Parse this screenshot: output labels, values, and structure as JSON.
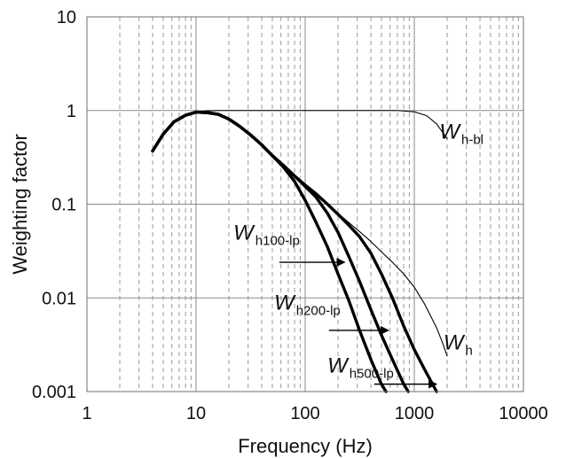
{
  "chart_data": {
    "type": "line",
    "title": "",
    "xlabel": "Frequency (Hz)",
    "ylabel": "Weighting factor",
    "xscale": "log",
    "yscale": "log",
    "xlim": [
      1,
      10000
    ],
    "ylim": [
      0.001,
      10
    ],
    "x_ticks": [
      {
        "value": 1,
        "label": "1"
      },
      {
        "value": 10,
        "label": "10"
      },
      {
        "value": 100,
        "label": "100"
      },
      {
        "value": 1000,
        "label": "1000"
      },
      {
        "value": 10000,
        "label": "10000"
      }
    ],
    "y_ticks": [
      {
        "value": 0.001,
        "label": "0.001"
      },
      {
        "value": 0.01,
        "label": "0.01"
      },
      {
        "value": 0.1,
        "label": "0.1"
      },
      {
        "value": 1,
        "label": "1"
      },
      {
        "value": 10,
        "label": "10"
      }
    ],
    "grid": {
      "major": true,
      "minor_x": true,
      "minor_x_style": "dashed"
    },
    "legend": "none",
    "series": [
      {
        "label_main": "W",
        "label_sub": "h-bl",
        "style": "thin",
        "points": [
          [
            4,
            0.37
          ],
          [
            5,
            0.56
          ],
          [
            6.3,
            0.76
          ],
          [
            8,
            0.89
          ],
          [
            10,
            0.96
          ],
          [
            12.5,
            0.99
          ],
          [
            16,
            1.0
          ],
          [
            25,
            1.0
          ],
          [
            50,
            1.0
          ],
          [
            100,
            1.0
          ],
          [
            200,
            1.0
          ],
          [
            400,
            1.0
          ],
          [
            700,
            1.0
          ],
          [
            1000,
            0.97
          ],
          [
            1300,
            0.88
          ],
          [
            1600,
            0.72
          ],
          [
            2000,
            0.5
          ]
        ]
      },
      {
        "label_main": "W",
        "label_sub": "h",
        "style": "thin",
        "points": [
          [
            4,
            0.37
          ],
          [
            5,
            0.56
          ],
          [
            6.3,
            0.76
          ],
          [
            8,
            0.89
          ],
          [
            10,
            0.96
          ],
          [
            12.5,
            0.95
          ],
          [
            16,
            0.91
          ],
          [
            20,
            0.81
          ],
          [
            25,
            0.68
          ],
          [
            31.5,
            0.55
          ],
          [
            40,
            0.43
          ],
          [
            50,
            0.33
          ],
          [
            63,
            0.26
          ],
          [
            80,
            0.2
          ],
          [
            100,
            0.16
          ],
          [
            125,
            0.13
          ],
          [
            160,
            0.1
          ],
          [
            200,
            0.08
          ],
          [
            250,
            0.064
          ],
          [
            315,
            0.051
          ],
          [
            400,
            0.04
          ],
          [
            500,
            0.031
          ],
          [
            630,
            0.024
          ],
          [
            800,
            0.018
          ],
          [
            1000,
            0.013
          ],
          [
            1250,
            0.0085
          ],
          [
            1600,
            0.0048
          ],
          [
            1800,
            0.0034
          ],
          [
            2000,
            0.0024
          ]
        ]
      },
      {
        "label_main": "W",
        "label_sub": "h500-lp",
        "style": "thick",
        "points": [
          [
            4,
            0.37
          ],
          [
            5,
            0.56
          ],
          [
            6.3,
            0.76
          ],
          [
            8,
            0.89
          ],
          [
            10,
            0.96
          ],
          [
            12.5,
            0.95
          ],
          [
            16,
            0.91
          ],
          [
            20,
            0.81
          ],
          [
            25,
            0.68
          ],
          [
            31.5,
            0.55
          ],
          [
            40,
            0.43
          ],
          [
            50,
            0.33
          ],
          [
            63,
            0.26
          ],
          [
            80,
            0.2
          ],
          [
            100,
            0.16
          ],
          [
            125,
            0.13
          ],
          [
            160,
            0.1
          ],
          [
            200,
            0.078
          ],
          [
            250,
            0.06
          ],
          [
            315,
            0.045
          ],
          [
            400,
            0.03
          ],
          [
            500,
            0.018
          ],
          [
            630,
            0.01
          ],
          [
            800,
            0.005
          ],
          [
            1000,
            0.0028
          ],
          [
            1250,
            0.0017
          ],
          [
            1600,
            0.001
          ]
        ]
      },
      {
        "label_main": "W",
        "label_sub": "h200-lp",
        "style": "thick",
        "points": [
          [
            4,
            0.37
          ],
          [
            5,
            0.56
          ],
          [
            6.3,
            0.76
          ],
          [
            8,
            0.89
          ],
          [
            10,
            0.96
          ],
          [
            12.5,
            0.95
          ],
          [
            16,
            0.91
          ],
          [
            20,
            0.81
          ],
          [
            25,
            0.68
          ],
          [
            31.5,
            0.55
          ],
          [
            40,
            0.43
          ],
          [
            50,
            0.33
          ],
          [
            63,
            0.26
          ],
          [
            80,
            0.2
          ],
          [
            100,
            0.155
          ],
          [
            125,
            0.12
          ],
          [
            160,
            0.08
          ],
          [
            200,
            0.05
          ],
          [
            250,
            0.028
          ],
          [
            315,
            0.015
          ],
          [
            400,
            0.0075
          ],
          [
            500,
            0.004
          ],
          [
            630,
            0.0022
          ],
          [
            800,
            0.0012
          ],
          [
            880,
            0.001
          ]
        ]
      },
      {
        "label_main": "W",
        "label_sub": "h100-lp",
        "style": "thick",
        "points": [
          [
            4,
            0.37
          ],
          [
            5,
            0.56
          ],
          [
            6.3,
            0.76
          ],
          [
            8,
            0.89
          ],
          [
            10,
            0.96
          ],
          [
            12.5,
            0.95
          ],
          [
            16,
            0.91
          ],
          [
            20,
            0.81
          ],
          [
            25,
            0.68
          ],
          [
            31.5,
            0.55
          ],
          [
            40,
            0.43
          ],
          [
            50,
            0.33
          ],
          [
            63,
            0.25
          ],
          [
            80,
            0.175
          ],
          [
            100,
            0.11
          ],
          [
            125,
            0.065
          ],
          [
            160,
            0.035
          ],
          [
            200,
            0.018
          ],
          [
            250,
            0.0095
          ],
          [
            315,
            0.0045
          ],
          [
            400,
            0.0022
          ],
          [
            500,
            0.0012
          ],
          [
            550,
            0.001
          ]
        ]
      }
    ],
    "annotations": [
      {
        "id": "wh-bl",
        "main": "W",
        "sub": "h-bl",
        "x": 1700,
        "y": 0.5,
        "arrow": false
      },
      {
        "id": "wh",
        "main": "W",
        "sub": "h",
        "x": 1850,
        "y": 0.0028,
        "arrow": false
      },
      {
        "id": "wh100-lp",
        "main": "W",
        "sub": "h100-lp",
        "x": 22,
        "y": 0.042,
        "arrow": true,
        "arrow_from": [
          58,
          0.024
        ],
        "arrow_to": [
          230,
          0.024
        ]
      },
      {
        "id": "wh200-lp",
        "main": "W",
        "sub": "h200-lp",
        "x": 52,
        "y": 0.0075,
        "arrow": true,
        "arrow_from": [
          165,
          0.0045
        ],
        "arrow_to": [
          580,
          0.0045
        ]
      },
      {
        "id": "wh500-lp",
        "main": "W",
        "sub": "h500-lp",
        "x": 160,
        "y": 0.0016,
        "arrow": true,
        "arrow_from": [
          430,
          0.0012
        ],
        "arrow_to": [
          1600,
          0.0012
        ]
      }
    ]
  }
}
